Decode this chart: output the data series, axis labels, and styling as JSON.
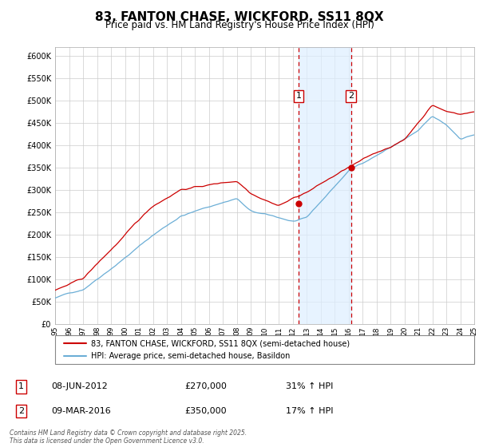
{
  "title": "83, FANTON CHASE, WICKFORD, SS11 8QX",
  "subtitle": "Price paid vs. HM Land Registry's House Price Index (HPI)",
  "legend_line1": "83, FANTON CHASE, WICKFORD, SS11 8QX (semi-detached house)",
  "legend_line2": "HPI: Average price, semi-detached house, Basildon",
  "footer": "Contains HM Land Registry data © Crown copyright and database right 2025.\nThis data is licensed under the Open Government Licence v3.0.",
  "transaction1_date": "08-JUN-2012",
  "transaction1_price": "£270,000",
  "transaction1_hpi": "31% ↑ HPI",
  "transaction2_date": "09-MAR-2016",
  "transaction2_price": "£350,000",
  "transaction2_hpi": "17% ↑ HPI",
  "hpi_color": "#6baed6",
  "price_color": "#cc0000",
  "vline_color": "#cc0000",
  "shade_color": "#ddeeff",
  "background_color": "#ffffff",
  "grid_color": "#cccccc",
  "ylim": [
    0,
    620000
  ],
  "ytick_step": 50000,
  "x_start_year": 1995,
  "x_end_year": 2025,
  "sale1_year": 2012.44,
  "sale2_year": 2016.19,
  "sale1_price": 270000,
  "sale2_price": 350000
}
